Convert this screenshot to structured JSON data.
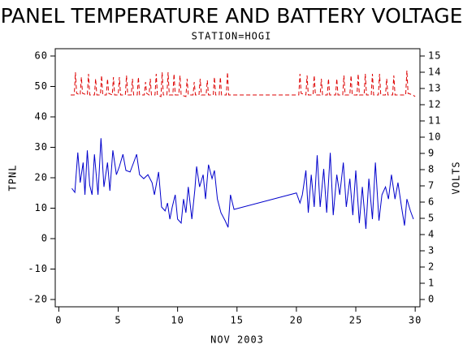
{
  "chart_data": {
    "type": "line",
    "title": "PANEL TEMPERATURE AND BATTERY VOLTAGE",
    "subtitle": "STATION=HOGI",
    "xlabel": "NOV 2003",
    "ylabel": "TPNL",
    "y2label": "VOLTS",
    "xlim": [
      -0.3,
      30.4
    ],
    "xticks": [
      0,
      5,
      10,
      15,
      20,
      25,
      30
    ],
    "ylim": [
      -22.4,
      62.4
    ],
    "yticks": [
      -20,
      -10,
      0,
      10,
      20,
      30,
      40,
      50,
      60
    ],
    "y2lim": [
      -0.45,
      15.45
    ],
    "y2ticks": [
      0,
      1,
      2,
      3,
      4,
      5,
      6,
      7,
      8,
      9,
      10,
      11,
      12,
      13,
      14,
      15
    ],
    "series": [
      {
        "color": "#0000cc",
        "dash": false,
        "x": [
          1.1,
          1.35,
          1.6,
          1.8,
          2.05,
          2.2,
          2.4,
          2.6,
          2.8,
          3.0,
          3.3,
          3.55,
          3.8,
          4.1,
          4.3,
          4.55,
          4.85,
          5.1,
          5.4,
          5.65,
          6.0,
          6.3,
          6.55,
          6.8,
          7.15,
          7.5,
          7.85,
          8.05,
          8.4,
          8.65,
          8.95,
          9.15,
          9.35,
          9.55,
          9.8,
          10.0,
          10.3,
          10.5,
          10.7,
          10.9,
          11.2,
          11.45,
          11.6,
          11.85,
          12.15,
          12.35,
          12.6,
          12.9,
          13.1,
          13.35,
          13.65,
          14.0,
          14.25,
          14.45,
          14.75,
          20.0,
          20.3,
          20.5,
          20.8,
          21.0,
          21.25,
          21.5,
          21.75,
          22.0,
          22.3,
          22.55,
          22.85,
          23.1,
          23.4,
          23.65,
          23.95,
          24.2,
          24.5,
          24.75,
          25.0,
          25.3,
          25.55,
          25.85,
          26.1,
          26.4,
          26.65,
          26.95,
          27.2,
          27.5,
          27.75,
          28.0,
          28.3,
          28.55,
          28.85,
          29.1,
          29.3,
          29.6,
          29.85
        ],
        "values": [
          16.5,
          15.2,
          28.3,
          18.4,
          25,
          14.4,
          29,
          17.6,
          14.4,
          27.7,
          14.4,
          33,
          17,
          25,
          15.7,
          29,
          21,
          23.7,
          27.7,
          22.4,
          21.9,
          25,
          27.7,
          21,
          19.7,
          21,
          18.4,
          14.4,
          21.9,
          10.4,
          9.1,
          11.7,
          6.4,
          10.4,
          14.4,
          6.4,
          5.1,
          13,
          8.5,
          17,
          6.4,
          16,
          23.7,
          17,
          21,
          13,
          24.3,
          19.7,
          22.4,
          13,
          8.5,
          5.9,
          3.7,
          14.4,
          9.6,
          15,
          11.7,
          14.4,
          22.4,
          8.5,
          21,
          10.4,
          27.4,
          10.4,
          22.9,
          8.5,
          28.2,
          7.7,
          21,
          14.4,
          25,
          10.4,
          19.7,
          7.7,
          22.4,
          5.1,
          17,
          3.2,
          19.7,
          6.4,
          25,
          5.9,
          14.4,
          17,
          13,
          21,
          13,
          18.4,
          10.4,
          4.3,
          13,
          9.1,
          6.4
        ]
      },
      {
        "color": "#dd0000",
        "dash": true,
        "axis": "y2",
        "x": [
          1.0,
          1.3,
          1.4,
          1.5,
          1.8,
          1.9,
          2.0,
          2.4,
          2.5,
          2.6,
          3.0,
          3.1,
          3.2,
          3.5,
          3.6,
          3.7,
          4.0,
          4.1,
          4.2,
          4.5,
          4.6,
          4.7,
          5.0,
          5.1,
          5.2,
          5.6,
          5.7,
          5.8,
          6.1,
          6.2,
          6.3,
          6.6,
          6.7,
          6.8,
          7.2,
          7.3,
          7.4,
          7.6,
          7.7,
          7.8,
          8.1,
          8.2,
          8.3,
          8.6,
          8.7,
          8.8,
          9.1,
          9.2,
          9.3,
          9.6,
          9.7,
          9.8,
          10.1,
          10.2,
          10.3,
          10.7,
          10.8,
          10.9,
          11.3,
          11.4,
          11.5,
          11.8,
          11.9,
          12.0,
          12.4,
          12.5,
          12.6,
          13.0,
          13.1,
          13.2,
          13.5,
          13.6,
          13.7,
          14.1,
          14.2,
          14.3,
          14.6,
          20.2,
          20.3,
          20.4,
          20.8,
          20.9,
          21.0,
          21.4,
          21.5,
          21.6,
          22.0,
          22.1,
          22.2,
          22.6,
          22.7,
          22.8,
          23.3,
          23.4,
          23.5,
          23.9,
          24.0,
          24.1,
          24.5,
          24.6,
          24.7,
          25.1,
          25.2,
          25.3,
          25.7,
          25.8,
          25.9,
          26.3,
          26.4,
          26.5,
          26.9,
          27.0,
          27.1,
          27.5,
          27.6,
          27.7,
          28.1,
          28.2,
          28.3,
          29.2,
          29.3,
          29.4,
          29.8,
          30.0
        ],
        "values": [
          12.6,
          12.6,
          14.0,
          12.7,
          12.6,
          13.7,
          12.7,
          12.6,
          13.9,
          12.6,
          12.6,
          13.6,
          12.6,
          12.6,
          13.8,
          12.6,
          12.6,
          13.6,
          12.7,
          12.6,
          13.7,
          12.6,
          12.6,
          13.7,
          12.6,
          12.6,
          13.8,
          12.6,
          12.6,
          13.6,
          12.6,
          12.6,
          13.7,
          12.6,
          12.6,
          13.4,
          12.7,
          12.6,
          13.6,
          12.6,
          12.6,
          13.9,
          12.6,
          12.5,
          14.0,
          12.6,
          12.6,
          14.0,
          12.6,
          12.6,
          13.9,
          12.6,
          12.6,
          13.8,
          12.6,
          12.5,
          13.6,
          12.6,
          12.6,
          13.4,
          12.6,
          12.6,
          13.6,
          12.6,
          12.6,
          13.5,
          12.6,
          12.6,
          13.7,
          12.6,
          12.6,
          13.7,
          12.6,
          12.6,
          14.0,
          12.6,
          12.6,
          12.6,
          13.9,
          12.7,
          12.6,
          13.8,
          12.6,
          12.6,
          13.8,
          12.6,
          12.6,
          13.6,
          12.6,
          12.6,
          13.6,
          12.6,
          12.6,
          13.6,
          12.6,
          12.6,
          13.8,
          12.6,
          12.6,
          13.8,
          12.6,
          12.6,
          13.9,
          12.6,
          12.6,
          13.9,
          12.6,
          12.6,
          13.9,
          12.6,
          12.6,
          13.9,
          12.6,
          12.6,
          13.6,
          12.6,
          12.6,
          13.8,
          12.6,
          12.6,
          14.1,
          12.7,
          12.6,
          12.5
        ]
      }
    ]
  }
}
